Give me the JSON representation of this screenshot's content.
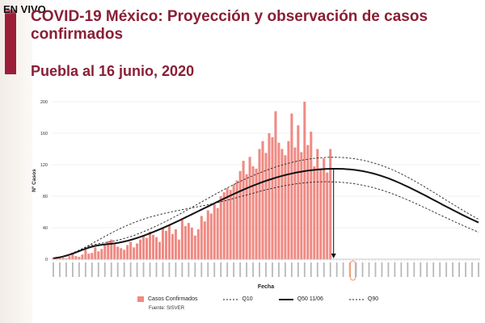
{
  "live_badge": "EN VIVO",
  "title": "COVID-19 México: Proyección y observación de casos confirmados",
  "subtitle": "Puebla al 16 junio, 2020",
  "source": "Fuente: SISVER",
  "colors": {
    "accent": "#8a1f35",
    "bars": "#ef8a83",
    "highlight": "#f3a07a"
  },
  "chart_data": {
    "type": "bar",
    "xlabel": "Fecha",
    "ylabel": "Nº Casos",
    "ylim": [
      0,
      200
    ],
    "yticks": [
      0,
      40,
      80,
      120,
      160,
      200
    ],
    "n_days": 133,
    "peak_marker": "11/06",
    "highlight_date": "16/06",
    "series": [
      {
        "name": "Casos Confirmados",
        "kind": "bar",
        "values": [
          2,
          1,
          3,
          2,
          1,
          4,
          8,
          4,
          3,
          6,
          12,
          7,
          8,
          15,
          10,
          13,
          18,
          23,
          25,
          19,
          16,
          14,
          12,
          18,
          22,
          15,
          20,
          25,
          30,
          27,
          35,
          31,
          28,
          22,
          40,
          36,
          44,
          32,
          38,
          25,
          50,
          42,
          46,
          40,
          30,
          38,
          55,
          48,
          62,
          58,
          70,
          65,
          80,
          85,
          90,
          88,
          95,
          100,
          112,
          125,
          108,
          130,
          118,
          115,
          140,
          150,
          135,
          160,
          155,
          188,
          148,
          140,
          132,
          150,
          185,
          142,
          170,
          136,
          200,
          145,
          162,
          118,
          140,
          115,
          128,
          110,
          140
        ]
      },
      {
        "name": "Q10",
        "kind": "dashed",
        "values": [
          1.1,
          1.7,
          2.5,
          3.5,
          4.7,
          6.1,
          7.7,
          9.4,
          11.3,
          13.3,
          15.4,
          17.6,
          19.8,
          22.1,
          24.4,
          26.7,
          28.9,
          31.1,
          33.3,
          35.4,
          37.4,
          39.4,
          41.3,
          43.1,
          44.8,
          46.5,
          48.0,
          49.5,
          50.9,
          52.2,
          53.4,
          54.6,
          55.7,
          56.8,
          57.8,
          58.7,
          59.6,
          60.5,
          61.3,
          62.1,
          62.9,
          63.7,
          64.4,
          65.2,
          66.0,
          66.8,
          67.6,
          68.4,
          69.3,
          70.2,
          71.1,
          72.0,
          73.0,
          74.0,
          75.0,
          76.1,
          77.2,
          78.3,
          79.4,
          80.5,
          81.6,
          82.7,
          83.8,
          84.9,
          86.0,
          87.1,
          88.1,
          89.1,
          90.1,
          91.0,
          91.9,
          92.7,
          93.5,
          94.2,
          94.9,
          95.5,
          96.1,
          96.6,
          97.0,
          97.4,
          97.7,
          98.0,
          98.2,
          98.3,
          98.4,
          98.4,
          98.3,
          98.2,
          98.0,
          97.8,
          97.5,
          97.1,
          96.6,
          96.1,
          95.5,
          94.8,
          94.0,
          93.2,
          92.2,
          91.2,
          90.1,
          88.9,
          87.7,
          86.4,
          85.0,
          83.5,
          82.0,
          80.4,
          78.7,
          77.0,
          75.3,
          73.5,
          71.7,
          69.8,
          67.9,
          66.0,
          64.1,
          62.2,
          60.2,
          58.3,
          56.3,
          54.4,
          52.5,
          50.6,
          48.7,
          46.8,
          44.9,
          43.1,
          41.3,
          39.5,
          37.8,
          36.1,
          34.4
        ]
      },
      {
        "name": "Q50 11/06",
        "kind": "solid",
        "values": [
          1.2,
          1.8,
          2.5,
          3.4,
          4.5,
          5.7,
          7.1,
          8.6,
          10.2,
          11.8,
          13.3,
          14.7,
          15.9,
          16.9,
          17.7,
          18.3,
          18.8,
          19.2,
          19.6,
          20.1,
          20.7,
          21.5,
          22.4,
          23.4,
          24.5,
          25.7,
          27.0,
          28.4,
          29.8,
          31.3,
          32.9,
          34.5,
          36.2,
          37.9,
          39.7,
          41.5,
          43.3,
          45.2,
          47.1,
          49.0,
          51.0,
          53.0,
          55.0,
          57.0,
          59.0,
          61.0,
          63.0,
          65.0,
          67.0,
          69.0,
          71.0,
          73.0,
          75.0,
          77.0,
          79.0,
          80.9,
          82.8,
          84.7,
          86.5,
          88.3,
          90.1,
          91.8,
          93.4,
          95.0,
          96.6,
          98.1,
          99.5,
          100.9,
          102.2,
          103.5,
          104.7,
          105.8,
          106.9,
          107.9,
          108.8,
          109.7,
          110.5,
          111.2,
          111.9,
          112.5,
          113.0,
          113.5,
          113.9,
          114.2,
          114.5,
          114.7,
          114.8,
          114.9,
          114.9,
          114.8,
          114.7,
          114.4,
          114.1,
          113.7,
          113.2,
          112.6,
          111.9,
          111.1,
          110.2,
          109.2,
          108.1,
          106.9,
          105.6,
          104.2,
          102.7,
          101.1,
          99.4,
          97.7,
          95.9,
          94.0,
          92.1,
          90.1,
          88.1,
          86.1,
          84.0,
          81.9,
          79.8,
          77.6,
          75.4,
          73.3,
          71.1,
          68.9,
          66.8,
          64.7,
          62.6,
          60.5,
          58.4,
          56.3,
          54.3,
          52.3,
          50.4,
          48.5,
          46.6
        ]
      },
      {
        "name": "Q90",
        "kind": "dashed",
        "values": [
          1.3,
          2.0,
          2.8,
          3.8,
          5.0,
          6.4,
          8.0,
          9.7,
          11.5,
          13.3,
          15.0,
          16.5,
          17.8,
          18.8,
          19.7,
          20.4,
          21.1,
          21.8,
          22.5,
          23.3,
          24.2,
          25.2,
          26.3,
          27.5,
          28.8,
          30.2,
          31.7,
          33.3,
          35.0,
          36.7,
          38.5,
          40.3,
          42.2,
          44.2,
          46.2,
          48.2,
          50.3,
          52.4,
          54.6,
          56.8,
          59.0,
          61.2,
          63.5,
          65.8,
          68.1,
          70.4,
          72.7,
          75.0,
          77.3,
          79.6,
          81.9,
          84.1,
          86.3,
          88.5,
          90.6,
          92.7,
          94.8,
          96.8,
          98.8,
          100.7,
          102.6,
          104.4,
          106.2,
          107.9,
          109.6,
          111.2,
          112.8,
          114.3,
          115.7,
          117.1,
          118.4,
          119.6,
          120.8,
          121.9,
          122.9,
          123.9,
          124.8,
          125.6,
          126.3,
          127.0,
          127.6,
          128.1,
          128.5,
          128.9,
          129.2,
          129.4,
          129.5,
          129.5,
          129.5,
          129.3,
          129.1,
          128.8,
          128.4,
          127.9,
          127.3,
          126.6,
          125.8,
          124.9,
          123.9,
          122.8,
          121.6,
          120.3,
          118.9,
          117.4,
          115.8,
          114.1,
          112.3,
          110.4,
          108.4,
          106.3,
          104.2,
          102.0,
          99.7,
          97.4,
          95.0,
          92.6,
          90.1,
          87.6,
          85.1,
          82.6,
          80.0,
          77.5,
          74.9,
          72.4,
          69.9,
          67.4,
          64.9,
          62.4,
          60.0,
          57.6,
          55.3,
          53.0,
          50.8
        ]
      }
    ]
  }
}
